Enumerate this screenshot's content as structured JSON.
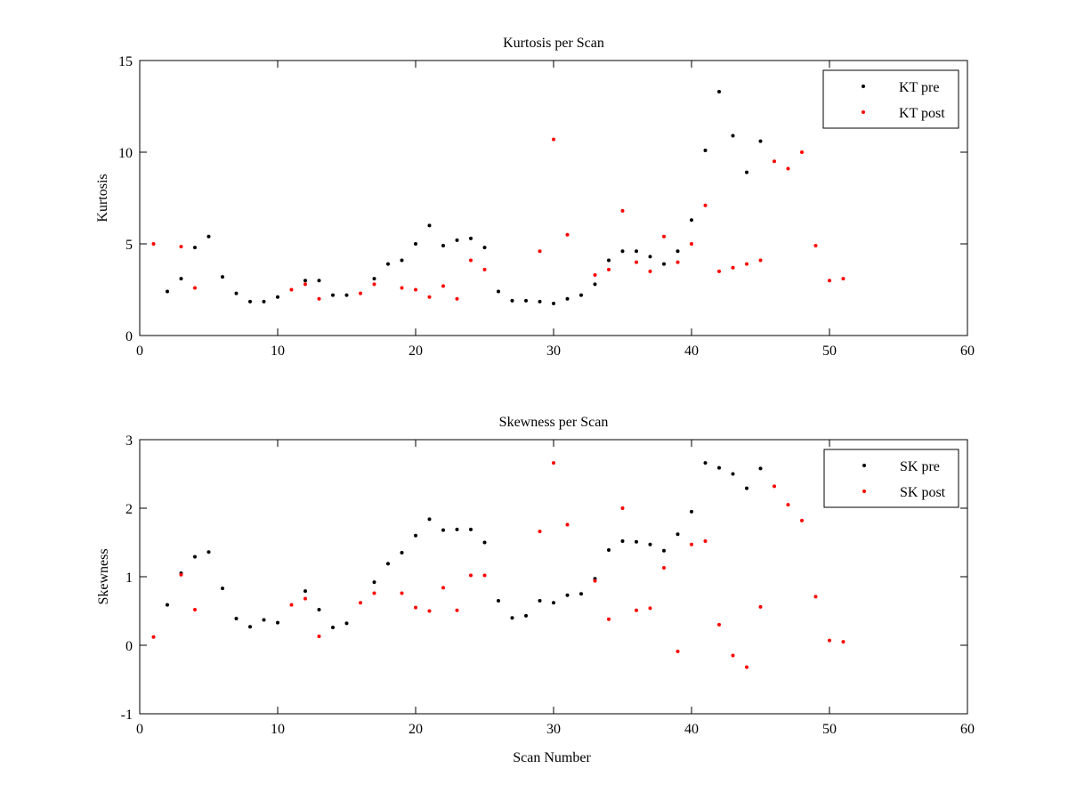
{
  "chart_data": [
    {
      "type": "scatter",
      "title": "Kurtosis per Scan",
      "xlabel": "",
      "ylabel": "Kurtosis",
      "xlim": [
        0,
        60
      ],
      "ylim": [
        0,
        15
      ],
      "xticks": [
        "0",
        "10",
        "20",
        "30",
        "40",
        "50",
        "60"
      ],
      "yticks": [
        "0",
        "5",
        "10",
        "15"
      ],
      "grid": false,
      "legend": "top-right",
      "series": [
        {
          "name": "KT pre",
          "color": "#000000",
          "x": [
            2,
            3,
            4,
            5,
            6,
            7,
            8,
            9,
            10,
            12,
            13,
            14,
            15,
            17,
            18,
            19,
            20,
            21,
            22,
            23,
            24,
            25,
            26,
            27,
            28,
            29,
            30,
            31,
            32,
            33,
            34,
            35,
            36,
            37,
            38,
            39,
            40,
            41,
            42,
            43,
            44,
            45
          ],
          "y": [
            2.4,
            3.1,
            4.8,
            5.4,
            3.2,
            2.3,
            1.85,
            1.85,
            2.1,
            3.0,
            3.0,
            2.2,
            2.2,
            3.1,
            3.9,
            4.1,
            5.0,
            6.0,
            4.9,
            5.2,
            5.3,
            4.8,
            2.4,
            1.9,
            1.9,
            1.85,
            1.75,
            2.0,
            2.2,
            2.8,
            4.1,
            4.6,
            4.6,
            4.3,
            3.9,
            4.6,
            6.3,
            10.1,
            13.3,
            10.9,
            8.9,
            10.6
          ]
        },
        {
          "name": "KT post",
          "color": "#ff0000",
          "x": [
            1,
            3,
            4,
            11,
            12,
            13,
            16,
            17,
            19,
            20,
            21,
            22,
            23,
            24,
            25,
            29,
            30,
            31,
            33,
            34,
            35,
            36,
            37,
            38,
            39,
            40,
            41,
            42,
            43,
            44,
            45,
            46,
            47,
            48,
            49,
            50,
            51
          ],
          "y": [
            5.0,
            4.85,
            2.6,
            2.5,
            2.8,
            2.0,
            2.3,
            2.8,
            2.6,
            2.5,
            2.1,
            2.7,
            2.0,
            4.1,
            3.6,
            4.6,
            10.7,
            5.5,
            3.3,
            3.6,
            6.8,
            4.0,
            3.5,
            5.4,
            4.0,
            5.0,
            7.1,
            3.5,
            3.7,
            3.9,
            4.1,
            9.5,
            9.1,
            10.0,
            4.9,
            3.0,
            3.1
          ]
        }
      ]
    },
    {
      "type": "scatter",
      "title": "Skewness per Scan",
      "xlabel": "Scan Number",
      "ylabel": "Skewness",
      "xlim": [
        0,
        60
      ],
      "ylim": [
        -1,
        3
      ],
      "xticks": [
        "0",
        "10",
        "20",
        "30",
        "40",
        "50",
        "60"
      ],
      "yticks": [
        "-1",
        "0",
        "1",
        "2",
        "3"
      ],
      "grid": false,
      "legend": "top-right",
      "series": [
        {
          "name": "SK pre",
          "color": "#000000",
          "x": [
            2,
            3,
            4,
            5,
            6,
            7,
            8,
            9,
            10,
            12,
            13,
            14,
            15,
            17,
            18,
            19,
            20,
            21,
            22,
            23,
            24,
            25,
            26,
            27,
            28,
            29,
            30,
            31,
            32,
            33,
            34,
            35,
            36,
            37,
            38,
            39,
            40,
            41,
            42,
            43,
            44,
            45
          ],
          "y": [
            0.59,
            1.05,
            1.29,
            1.36,
            0.83,
            0.39,
            0.27,
            0.37,
            0.33,
            0.79,
            0.52,
            0.26,
            0.32,
            0.92,
            1.19,
            1.35,
            1.6,
            1.84,
            1.68,
            1.69,
            1.69,
            1.5,
            0.65,
            0.4,
            0.43,
            0.65,
            0.62,
            0.73,
            0.75,
            0.97,
            1.39,
            1.52,
            1.51,
            1.47,
            1.38,
            1.62,
            1.95,
            2.66,
            2.59,
            2.5,
            2.29,
            2.58
          ]
        },
        {
          "name": "SK post",
          "color": "#ff0000",
          "x": [
            1,
            3,
            4,
            11,
            12,
            13,
            16,
            17,
            19,
            20,
            21,
            22,
            23,
            24,
            25,
            29,
            30,
            31,
            33,
            34,
            35,
            36,
            37,
            38,
            39,
            40,
            41,
            42,
            43,
            44,
            45,
            46,
            47,
            48,
            49,
            50,
            51
          ],
          "y": [
            0.12,
            1.03,
            0.52,
            0.59,
            0.68,
            0.13,
            0.62,
            0.76,
            0.76,
            0.55,
            0.5,
            0.84,
            0.51,
            1.02,
            1.02,
            1.66,
            2.66,
            1.76,
            0.94,
            0.38,
            2.0,
            0.51,
            0.54,
            1.13,
            -0.09,
            1.47,
            1.52,
            0.3,
            -0.15,
            -0.32,
            0.56,
            2.32,
            2.05,
            1.82,
            0.71,
            0.07,
            0.05
          ]
        }
      ]
    }
  ]
}
